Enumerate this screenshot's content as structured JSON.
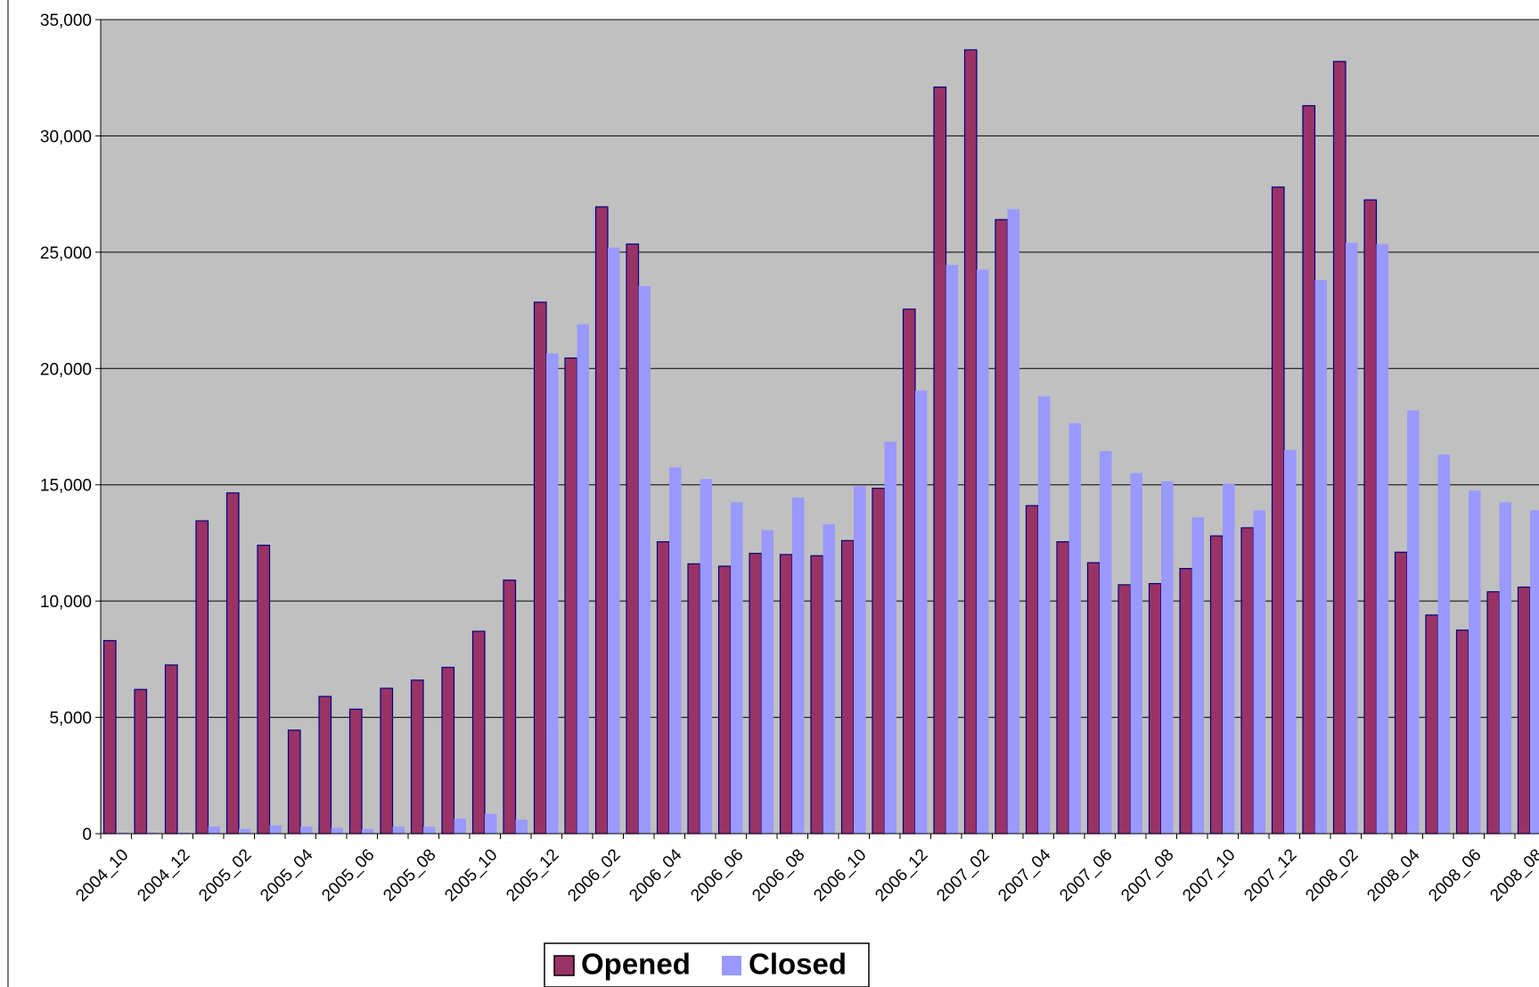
{
  "chart_data": {
    "type": "bar",
    "categories": [
      "2004_10",
      null,
      "2004_12",
      null,
      "2005_02",
      null,
      "2005_04",
      null,
      "2005_06",
      null,
      "2005_08",
      null,
      "2005_10",
      null,
      "2005_12",
      null,
      "2006_02",
      null,
      "2006_04",
      null,
      "2006_06",
      null,
      "2006_08",
      null,
      "2006_10",
      null,
      "2006_12",
      null,
      "2007_02",
      null,
      "2007_04",
      null,
      "2007_06",
      null,
      "2007_08",
      null,
      "2007_10",
      null,
      "2007_12",
      null,
      "2008_02",
      null,
      "2008_04",
      null,
      "2008_06",
      null,
      "2008_08"
    ],
    "series": [
      {
        "name": "Opened",
        "color": "#993366",
        "values": [
          8300,
          6200,
          7250,
          13450,
          14650,
          12400,
          4450,
          5900,
          5350,
          6250,
          6600,
          7150,
          8700,
          10900,
          22850,
          20450,
          26950,
          25350,
          12550,
          11600,
          11500,
          12050,
          12000,
          11950,
          12600,
          14850,
          22550,
          32100,
          33700,
          26400,
          14100,
          12550,
          11650,
          10700,
          10750,
          11400,
          12800,
          13150,
          27800,
          31300,
          33200,
          27250,
          12100,
          9400,
          8750,
          10400,
          10600
        ]
      },
      {
        "name": "Closed",
        "color": "#9999ff",
        "values": [
          50,
          50,
          50,
          300,
          200,
          350,
          300,
          250,
          200,
          300,
          300,
          650,
          850,
          600,
          20650,
          21900,
          25200,
          23550,
          15750,
          15250,
          14250,
          13050,
          14450,
          13300,
          14950,
          16850,
          19050,
          24450,
          24250,
          26850,
          18800,
          17650,
          16450,
          15500,
          15150,
          13600,
          15050,
          13900,
          16500,
          23800,
          25400,
          25350,
          18200,
          16300,
          14750,
          14250,
          13900
        ]
      }
    ],
    "ylim": [
      0,
      35000
    ],
    "yticks": [
      0,
      {
        "value": 5000,
        "label": "5,000"
      },
      {
        "value": 10000,
        "label": "10,000"
      },
      {
        "value": 15000,
        "label": "15,000"
      },
      {
        "value": 20000,
        "label": "20,000"
      },
      {
        "value": 25000,
        "label": "25,000"
      },
      {
        "value": 30000,
        "label": "30,000"
      },
      {
        "value": 35000,
        "label": "35,000"
      }
    ],
    "grid": true,
    "legend": "bottom"
  }
}
